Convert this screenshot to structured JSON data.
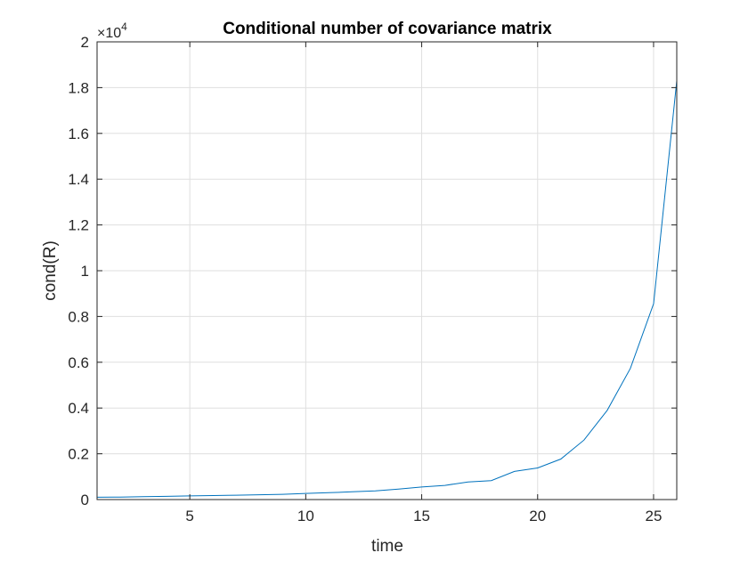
{
  "colors": {
    "line": "#0072BD",
    "grid": "#DFDFDF",
    "axis": "#262626"
  },
  "chart_data": {
    "type": "line",
    "title": "Conditional number of covariance matrix",
    "xlabel": "time",
    "ylabel": "cond(R)",
    "xlim": [
      1,
      26
    ],
    "ylim": [
      0,
      20000
    ],
    "grid": true,
    "x_ticks": [
      5,
      10,
      15,
      20,
      25
    ],
    "y_ticks": [
      0,
      2000,
      4000,
      6000,
      8000,
      10000,
      12000,
      14000,
      16000,
      18000,
      20000
    ],
    "x_tick_labels": [
      "5",
      "10",
      "15",
      "20",
      "25"
    ],
    "y_tick_labels": [
      "0",
      "0.2",
      "0.4",
      "0.6",
      "0.8",
      "1",
      "1.2",
      "1.4",
      "1.6",
      "1.8",
      "2"
    ],
    "y_exponent": {
      "base": "×10",
      "power": "4"
    },
    "x": [
      1,
      2,
      3,
      4,
      5,
      6,
      7,
      8,
      9,
      10,
      11,
      12,
      13,
      14,
      15,
      16,
      17,
      18,
      19,
      20,
      21,
      22,
      23,
      24,
      25,
      26
    ],
    "y": [
      100,
      110,
      125,
      140,
      160,
      175,
      190,
      210,
      230,
      270,
      300,
      340,
      380,
      460,
      550,
      620,
      770,
      830,
      1230,
      1380,
      1770,
      2600,
      3900,
      5730,
      8560,
      18300
    ]
  }
}
